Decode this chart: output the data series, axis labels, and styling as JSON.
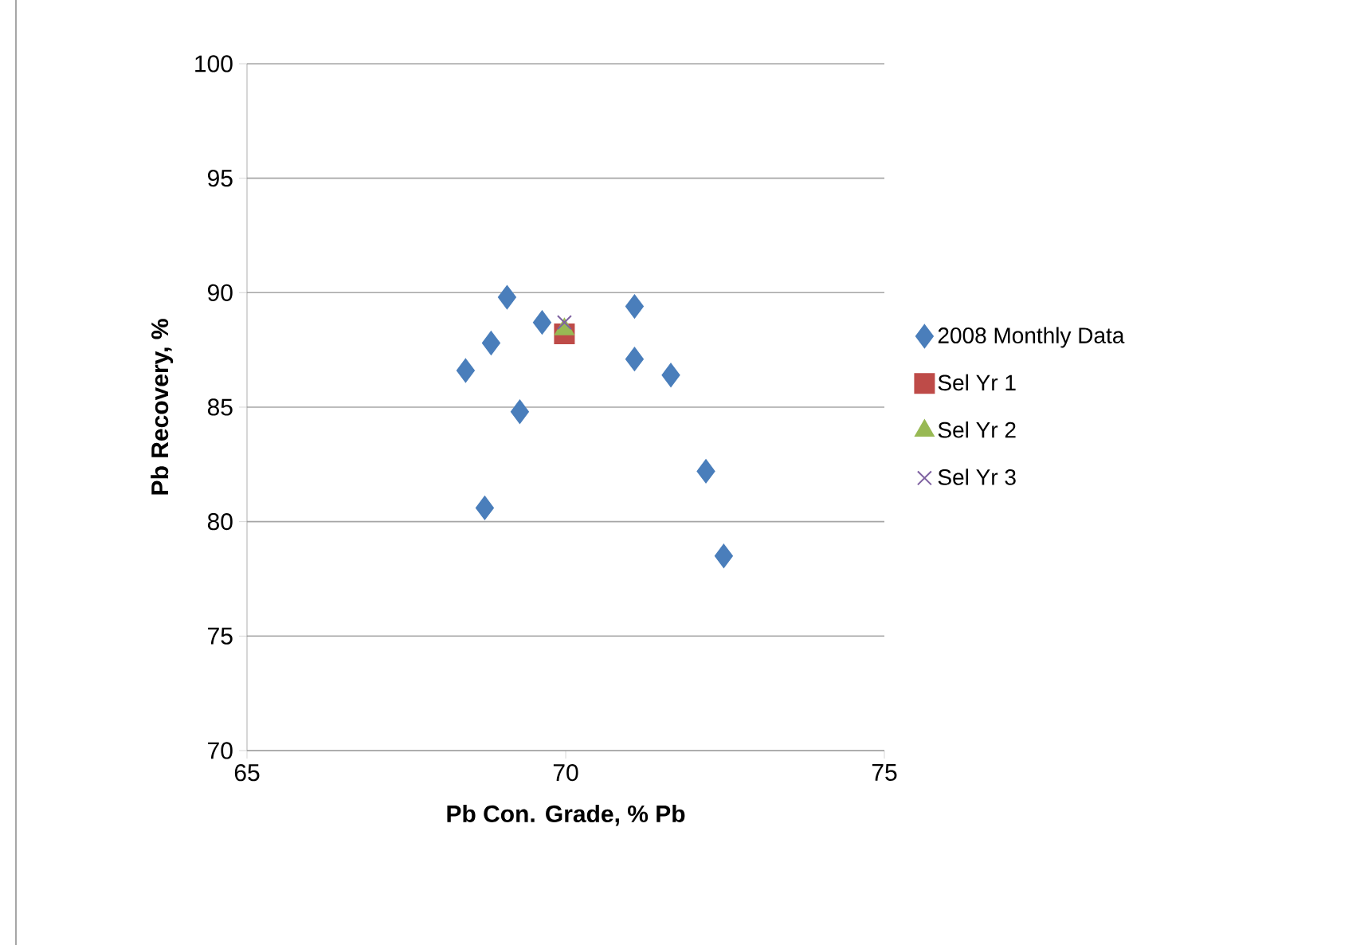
{
  "chart_data": {
    "type": "scatter",
    "xlabel": "Pb Con. Grade, % Pb",
    "ylabel": "Pb Recovery, %",
    "xlim": [
      65,
      75
    ],
    "ylim": [
      70,
      100
    ],
    "xticks": [
      65,
      70,
      75
    ],
    "yticks": [
      70,
      75,
      80,
      85,
      90,
      95,
      100
    ],
    "grid": "y",
    "legend": "right",
    "series": [
      {
        "name": "2008 Monthly Data",
        "color": "#4a7ebb",
        "marker": "diamond",
        "x": [
          68.43,
          68.83,
          69.08,
          69.63,
          69.28,
          68.73,
          71.08,
          71.08,
          71.65,
          72.2,
          72.48
        ],
        "values": [
          86.6,
          87.8,
          89.8,
          88.7,
          84.8,
          80.6,
          89.4,
          87.1,
          86.4,
          82.2,
          78.5
        ]
      },
      {
        "name": "Sel Yr 1",
        "color": "#be4b48",
        "marker": "square",
        "x": [
          69.98
        ],
        "values": [
          88.2
        ]
      },
      {
        "name": "Sel Yr 2",
        "color": "#98b954",
        "marker": "triangle",
        "x": [
          69.98
        ],
        "values": [
          88.4
        ]
      },
      {
        "name": "Sel Yr 3",
        "color": "#7d60a0",
        "marker": "cross",
        "x": [
          69.98
        ],
        "values": [
          88.7
        ]
      }
    ]
  }
}
